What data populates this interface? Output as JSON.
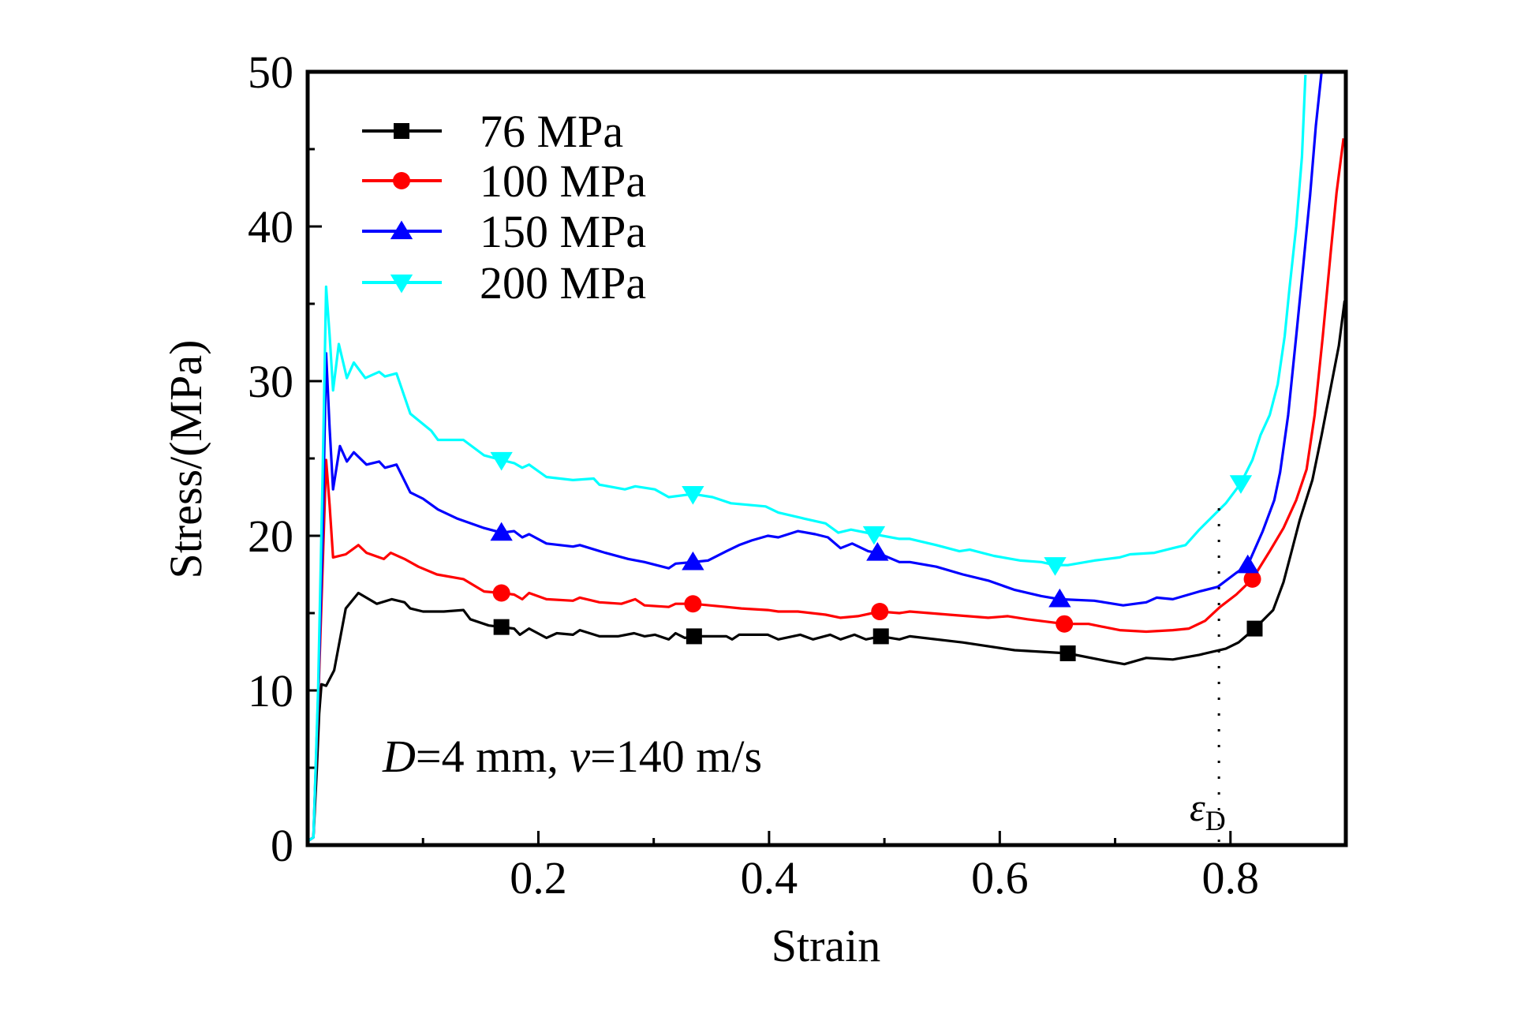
{
  "chart_data": {
    "type": "line",
    "title": "",
    "xlabel": "Strain",
    "ylabel": "Stress/(MPa)",
    "xlim": [
      0,
      0.9
    ],
    "ylim": [
      0,
      50
    ],
    "x_ticks": [
      0.2,
      0.4,
      0.6,
      0.8
    ],
    "x_tick_labels": [
      "0.2",
      "0.4",
      "0.6",
      "0.8"
    ],
    "x_minor_ticks": [
      0.1,
      0.3,
      0.5,
      0.7
    ],
    "y_ticks": [
      0,
      10,
      20,
      30,
      40,
      50
    ],
    "y_tick_labels": [
      "0",
      "10",
      "20",
      "30",
      "40",
      "50"
    ],
    "y_minor_ticks": [
      5,
      15,
      25,
      35,
      45
    ],
    "grid": false,
    "legend_position": "top-left",
    "annotation": {
      "parts": [
        {
          "text": "D",
          "italic": true
        },
        {
          "text": "=4 mm, ",
          "italic": false
        },
        {
          "text": "v",
          "italic": true
        },
        {
          "text": "=140 m/s",
          "italic": false
        }
      ],
      "position": "bottom-left"
    },
    "densification": {
      "label_symbol": "ε",
      "label_subscript": "D",
      "strain": 0.79,
      "y_range": [
        0,
        22.1
      ],
      "style": "dotted"
    },
    "series": [
      {
        "name": "76 MPa",
        "color": "#000000",
        "marker": "square",
        "marker_x": [
          0.168,
          0.335,
          0.497,
          0.659,
          0.821
        ],
        "x": [
          0.001,
          0.005,
          0.008,
          0.01,
          0.012,
          0.016,
          0.023,
          0.033,
          0.044,
          0.06,
          0.073,
          0.084,
          0.089,
          0.1,
          0.118,
          0.135,
          0.141,
          0.157,
          0.168,
          0.179,
          0.184,
          0.192,
          0.207,
          0.216,
          0.23,
          0.236,
          0.253,
          0.269,
          0.283,
          0.292,
          0.301,
          0.313,
          0.319,
          0.327,
          0.335,
          0.363,
          0.368,
          0.374,
          0.399,
          0.408,
          0.427,
          0.438,
          0.453,
          0.462,
          0.474,
          0.484,
          0.497,
          0.513,
          0.522,
          0.568,
          0.613,
          0.659,
          0.693,
          0.708,
          0.727,
          0.75,
          0.773,
          0.796,
          0.807,
          0.821,
          0.837,
          0.846,
          0.853,
          0.86,
          0.871,
          0.879,
          0.887,
          0.894,
          0.899
        ],
        "y": [
          0.3,
          0.5,
          5.0,
          8.5,
          10.4,
          10.3,
          11.3,
          15.3,
          16.3,
          15.6,
          15.9,
          15.7,
          15.3,
          15.1,
          15.1,
          15.2,
          14.6,
          14.2,
          14.1,
          14.0,
          13.6,
          14.0,
          13.4,
          13.7,
          13.6,
          13.9,
          13.5,
          13.5,
          13.7,
          13.5,
          13.6,
          13.3,
          13.7,
          13.4,
          13.5,
          13.5,
          13.3,
          13.6,
          13.6,
          13.3,
          13.6,
          13.3,
          13.6,
          13.3,
          13.6,
          13.3,
          13.5,
          13.3,
          13.5,
          13.1,
          12.6,
          12.4,
          11.9,
          11.7,
          12.1,
          12.0,
          12.3,
          12.7,
          13.1,
          14.0,
          15.2,
          17.0,
          19.0,
          21.0,
          23.6,
          26.5,
          29.6,
          32.3,
          35.2
        ]
      },
      {
        "name": "100 MPa",
        "color": "#ff0000",
        "marker": "circle",
        "marker_x": [
          0.168,
          0.334,
          0.496,
          0.656,
          0.819
        ],
        "x": [
          0.001,
          0.005,
          0.009,
          0.013,
          0.016,
          0.019,
          0.022,
          0.033,
          0.044,
          0.051,
          0.066,
          0.072,
          0.084,
          0.096,
          0.112,
          0.135,
          0.153,
          0.168,
          0.179,
          0.186,
          0.192,
          0.207,
          0.23,
          0.236,
          0.253,
          0.272,
          0.284,
          0.292,
          0.313,
          0.319,
          0.334,
          0.363,
          0.376,
          0.399,
          0.408,
          0.425,
          0.449,
          0.462,
          0.477,
          0.496,
          0.513,
          0.522,
          0.556,
          0.59,
          0.607,
          0.624,
          0.656,
          0.677,
          0.704,
          0.727,
          0.75,
          0.764,
          0.778,
          0.791,
          0.805,
          0.819,
          0.834,
          0.846,
          0.857,
          0.866,
          0.873,
          0.88,
          0.887,
          0.892,
          0.898
        ],
        "y": [
          0.3,
          0.5,
          9.0,
          18.0,
          24.9,
          22.0,
          18.6,
          18.8,
          19.4,
          18.9,
          18.5,
          18.9,
          18.5,
          18.0,
          17.5,
          17.2,
          16.4,
          16.3,
          16.2,
          15.9,
          16.3,
          15.9,
          15.8,
          16.0,
          15.7,
          15.6,
          15.9,
          15.5,
          15.4,
          15.6,
          15.6,
          15.4,
          15.3,
          15.2,
          15.1,
          15.1,
          14.9,
          14.7,
          14.8,
          15.1,
          15.0,
          15.1,
          14.9,
          14.7,
          14.8,
          14.6,
          14.3,
          14.3,
          13.9,
          13.8,
          13.9,
          14.0,
          14.5,
          15.4,
          16.2,
          17.2,
          19.0,
          20.5,
          22.3,
          24.3,
          27.8,
          32.9,
          38.4,
          42.2,
          45.7
        ]
      },
      {
        "name": "150 MPa",
        "color": "#0000ff",
        "marker": "triangle-up",
        "marker_x": [
          0.168,
          0.334,
          0.494,
          0.652,
          0.815
        ],
        "x": [
          0.001,
          0.005,
          0.009,
          0.013,
          0.016,
          0.019,
          0.022,
          0.028,
          0.034,
          0.04,
          0.051,
          0.062,
          0.067,
          0.077,
          0.089,
          0.1,
          0.113,
          0.13,
          0.153,
          0.168,
          0.179,
          0.186,
          0.192,
          0.207,
          0.23,
          0.236,
          0.258,
          0.278,
          0.292,
          0.313,
          0.319,
          0.334,
          0.347,
          0.363,
          0.374,
          0.385,
          0.399,
          0.408,
          0.425,
          0.44,
          0.451,
          0.462,
          0.472,
          0.486,
          0.494,
          0.513,
          0.522,
          0.545,
          0.568,
          0.59,
          0.613,
          0.636,
          0.652,
          0.682,
          0.707,
          0.727,
          0.736,
          0.75,
          0.773,
          0.789,
          0.805,
          0.815,
          0.828,
          0.838,
          0.843,
          0.85,
          0.857,
          0.863,
          0.869,
          0.874,
          0.879
        ],
        "y": [
          0.3,
          0.5,
          9.5,
          20.0,
          31.8,
          27.0,
          23.0,
          25.8,
          24.8,
          25.4,
          24.6,
          24.8,
          24.4,
          24.6,
          22.8,
          22.4,
          21.7,
          21.1,
          20.5,
          20.2,
          20.3,
          19.9,
          20.1,
          19.5,
          19.3,
          19.4,
          18.9,
          18.5,
          18.3,
          17.9,
          18.2,
          18.3,
          18.4,
          19.0,
          19.4,
          19.7,
          20.0,
          19.9,
          20.3,
          20.1,
          19.9,
          19.2,
          19.5,
          19.0,
          18.9,
          18.3,
          18.3,
          18.0,
          17.5,
          17.1,
          16.5,
          16.1,
          15.9,
          15.8,
          15.5,
          15.7,
          16.0,
          15.9,
          16.4,
          16.7,
          17.6,
          18.1,
          20.3,
          22.3,
          24.1,
          27.8,
          32.9,
          37.4,
          42.0,
          46.5,
          50.0
        ]
      },
      {
        "name": "200 MPa",
        "color": "#00ffff",
        "marker": "triangle-down",
        "marker_x": [
          0.168,
          0.334,
          0.491,
          0.648,
          0.809
        ],
        "x": [
          0.001,
          0.005,
          0.009,
          0.013,
          0.016,
          0.019,
          0.022,
          0.027,
          0.034,
          0.04,
          0.05,
          0.062,
          0.067,
          0.077,
          0.089,
          0.107,
          0.113,
          0.135,
          0.153,
          0.168,
          0.179,
          0.186,
          0.192,
          0.207,
          0.23,
          0.248,
          0.253,
          0.275,
          0.284,
          0.301,
          0.313,
          0.334,
          0.351,
          0.367,
          0.397,
          0.408,
          0.431,
          0.449,
          0.46,
          0.471,
          0.491,
          0.513,
          0.522,
          0.545,
          0.565,
          0.574,
          0.595,
          0.618,
          0.636,
          0.648,
          0.659,
          0.682,
          0.704,
          0.713,
          0.734,
          0.75,
          0.761,
          0.773,
          0.796,
          0.809,
          0.819,
          0.826,
          0.834,
          0.841,
          0.847,
          0.851,
          0.857,
          0.862,
          0.865
        ],
        "y": [
          0.3,
          0.5,
          10.0,
          24.0,
          36.1,
          33.0,
          29.4,
          32.4,
          30.2,
          31.2,
          30.2,
          30.6,
          30.3,
          30.5,
          27.9,
          26.8,
          26.2,
          26.2,
          25.2,
          24.9,
          24.7,
          24.4,
          24.6,
          23.8,
          23.6,
          23.7,
          23.3,
          23.0,
          23.2,
          23.0,
          22.5,
          22.7,
          22.5,
          22.1,
          21.9,
          21.5,
          21.1,
          20.8,
          20.2,
          20.4,
          20.1,
          19.8,
          19.8,
          19.4,
          19.0,
          19.1,
          18.7,
          18.4,
          18.3,
          18.1,
          18.1,
          18.4,
          18.6,
          18.8,
          18.9,
          19.2,
          19.4,
          20.4,
          22.1,
          23.4,
          24.9,
          26.5,
          27.8,
          29.8,
          32.9,
          35.9,
          40.0,
          44.5,
          49.8
        ]
      }
    ]
  }
}
